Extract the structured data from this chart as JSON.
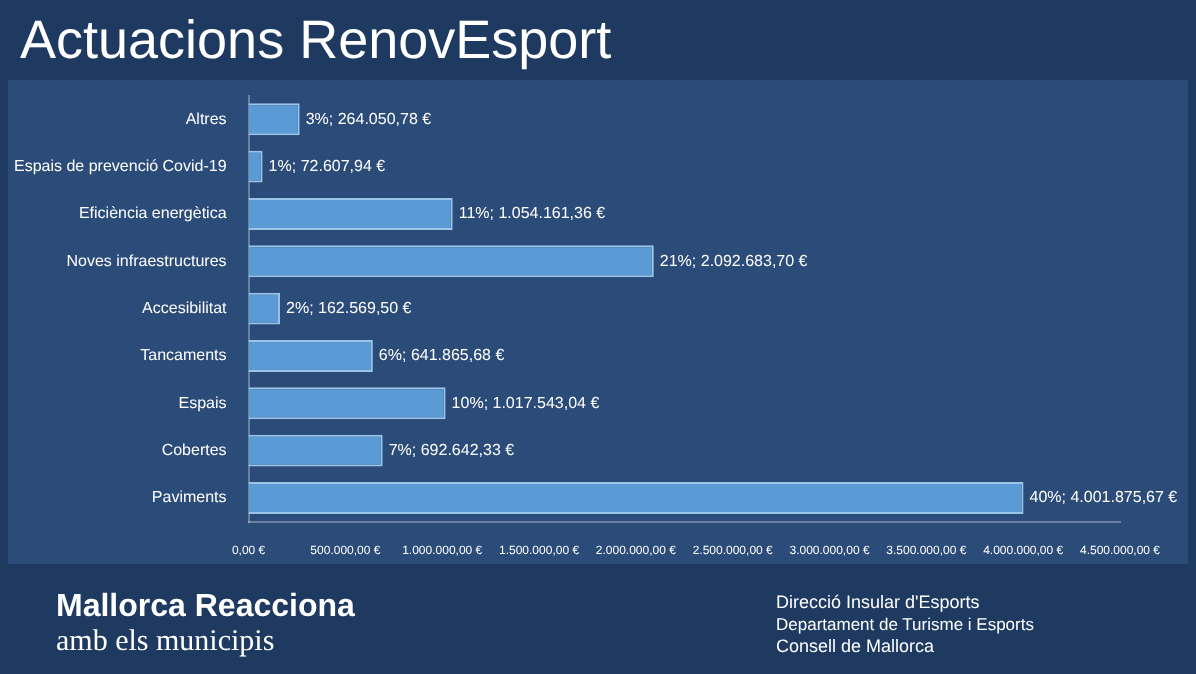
{
  "chart_data": {
    "type": "bar",
    "orientation": "horizontal",
    "title": "Actuacions RenovEsport",
    "categories": [
      "Altres",
      "Espais de prevenció Covid-19",
      "Eficiència energètica",
      "Noves infraestructures",
      "Accesibilitat",
      "Tancaments",
      "Espais",
      "Cobertes",
      "Paviments"
    ],
    "values": [
      264050.78,
      72607.94,
      1054161.36,
      2092683.7,
      162569.5,
      641865.68,
      1017543.04,
      692642.33,
      4001875.67
    ],
    "value_labels": [
      "3%; 264.050,78 €",
      "1%; 72.607,94 €",
      "11%; 1.054.161,36 €",
      "21%; 2.092.683,70 €",
      "2%; 162.569,50 €",
      "6%; 641.865,68 €",
      "10%; 1.017.543,04 €",
      "7%; 692.642,33 €",
      "40%; 4.001.875,67 €"
    ],
    "color": "#5b9bd5",
    "xlim": [
      0,
      4500000
    ],
    "xticks": [
      {
        "value": 0,
        "label": "0,00 €"
      },
      {
        "value": 500000,
        "label": "500.000,00 €"
      },
      {
        "value": 1000000,
        "label": "1.000.000,00 €"
      },
      {
        "value": 1500000,
        "label": "1.500.000,00 €"
      },
      {
        "value": 2000000,
        "label": "2.000.000,00 €"
      },
      {
        "value": 2500000,
        "label": "2.500.000,00 €"
      },
      {
        "value": 3000000,
        "label": "3.000.000,00 €"
      },
      {
        "value": 3500000,
        "label": "3.500.000,00 €"
      },
      {
        "value": 4000000,
        "label": "4.000.000,00 €"
      },
      {
        "value": 4500000,
        "label": "4.500.000,00 €"
      }
    ],
    "grid": false,
    "legend": false,
    "annotations": [
      "Mallorca Reacciona",
      "amb els municipis",
      "Direcció Insular d'Esports",
      "Departament de Turisme i Esports",
      "Consell de Mallorca"
    ]
  }
}
